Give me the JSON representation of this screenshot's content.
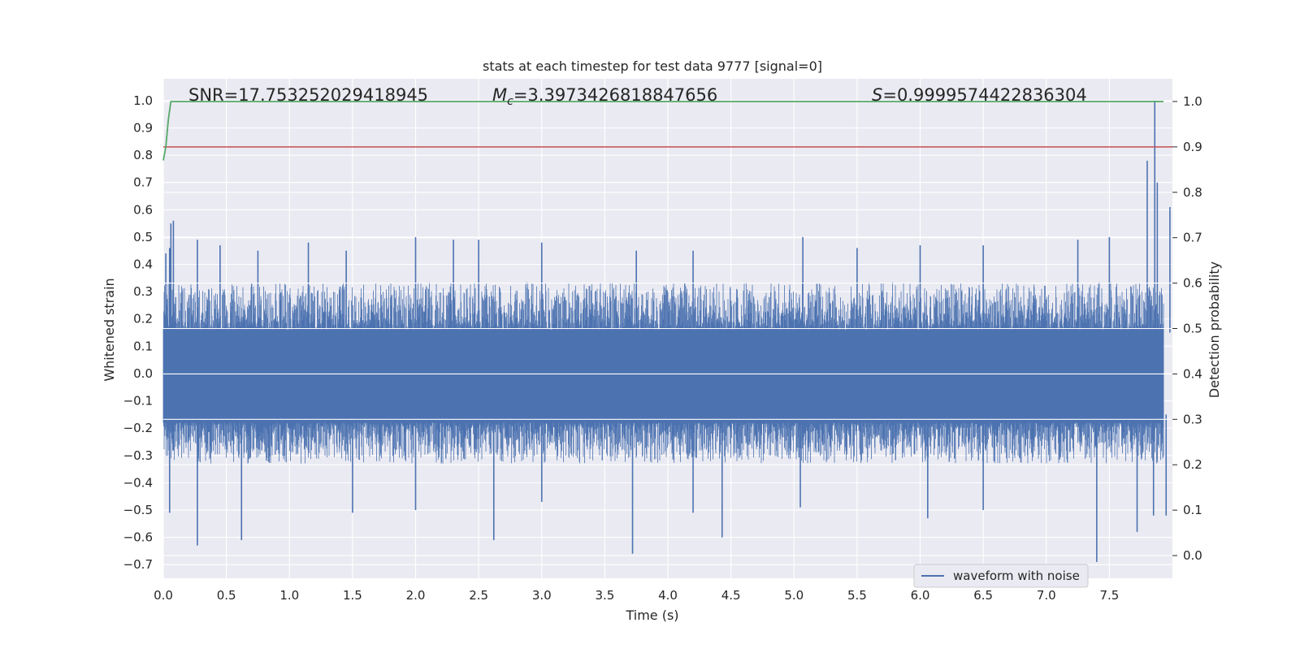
{
  "chart_data": {
    "type": "line",
    "title": "stats at each timestep for test data 9777 [signal=0]",
    "xlabel": "Time (s)",
    "ylabel": "Whitened strain",
    "y2label": "Detection probability",
    "xlim": [
      0.0,
      8.0
    ],
    "ylim": [
      -0.75,
      1.08
    ],
    "y2lim": [
      -0.05,
      1.05
    ],
    "x_ticks": [
      0.0,
      0.5,
      1.0,
      1.5,
      2.0,
      2.5,
      3.0,
      3.5,
      4.0,
      4.5,
      5.0,
      5.5,
      6.0,
      6.5,
      7.0,
      7.5
    ],
    "x_tick_labels": [
      "0.0",
      "0.5",
      "1.0",
      "1.5",
      "2.0",
      "2.5",
      "3.0",
      "3.5",
      "4.0",
      "4.5",
      "5.0",
      "5.5",
      "6.0",
      "6.5",
      "7.0",
      "7.5"
    ],
    "y_ticks": [
      -0.7,
      -0.6,
      -0.5,
      -0.4,
      -0.3,
      -0.2,
      -0.1,
      0.0,
      0.1,
      0.2,
      0.3,
      0.4,
      0.5,
      0.6,
      0.7,
      0.8,
      0.9,
      1.0
    ],
    "y_tick_labels": [
      "−0.7",
      "−0.6",
      "−0.5",
      "−0.4",
      "−0.3",
      "−0.2",
      "−0.1",
      "0.0",
      "0.1",
      "0.2",
      "0.3",
      "0.4",
      "0.5",
      "0.6",
      "0.7",
      "0.8",
      "0.9",
      "1.0"
    ],
    "y2_ticks": [
      0.0,
      0.1,
      0.2,
      0.3,
      0.4,
      0.5,
      0.6,
      0.7,
      0.8,
      0.9,
      1.0
    ],
    "y2_tick_labels": [
      "0.0",
      "0.1",
      "0.2",
      "0.3",
      "0.4",
      "0.5",
      "0.6",
      "0.7",
      "0.8",
      "0.9",
      "1.0"
    ],
    "annotations": {
      "snr": "SNR=17.753252029418945",
      "mc_sym": "M",
      "mc_sub": "c",
      "mc_val": "=3.3973426818847656",
      "s_sym": "S",
      "s_val": "=0.9999574422836304"
    },
    "legend": {
      "position": "lower-right",
      "entries": [
        "waveform with noise"
      ]
    },
    "grid": true,
    "colors": {
      "axes_bg": "#eaeaf2",
      "grid": "#ffffff",
      "waveform": "#4c72b0",
      "probability": "#55a868",
      "threshold": "#c44e52"
    },
    "series": [
      {
        "name": "waveform with noise",
        "axis": "left",
        "kind": "noise-band",
        "x_range": [
          0.0,
          7.93
        ],
        "dense_envelope": [
          -0.18,
          0.16
        ],
        "typical_envelope": [
          -0.3,
          0.3
        ],
        "peaks": [
          [
            0.02,
            0.44
          ],
          [
            0.05,
            0.46
          ],
          [
            0.06,
            0.55
          ],
          [
            0.08,
            0.56
          ],
          [
            0.27,
            0.49
          ],
          [
            0.45,
            0.47
          ],
          [
            0.75,
            0.45
          ],
          [
            1.15,
            0.48
          ],
          [
            1.45,
            0.45
          ],
          [
            2.0,
            0.5
          ],
          [
            2.3,
            0.49
          ],
          [
            2.5,
            0.49
          ],
          [
            3.0,
            0.48
          ],
          [
            3.75,
            0.45
          ],
          [
            4.2,
            0.45
          ],
          [
            5.07,
            0.5
          ],
          [
            5.5,
            0.46
          ],
          [
            6.0,
            0.47
          ],
          [
            6.5,
            0.47
          ],
          [
            7.25,
            0.49
          ],
          [
            7.5,
            0.5
          ],
          [
            7.8,
            0.78
          ],
          [
            7.86,
            1.0
          ],
          [
            7.88,
            0.7
          ],
          [
            7.98,
            0.61
          ]
        ],
        "troughs": [
          [
            0.05,
            -0.51
          ],
          [
            0.27,
            -0.63
          ],
          [
            0.62,
            -0.61
          ],
          [
            1.5,
            -0.51
          ],
          [
            2.0,
            -0.5
          ],
          [
            2.62,
            -0.61
          ],
          [
            3.0,
            -0.47
          ],
          [
            3.72,
            -0.66
          ],
          [
            4.2,
            -0.51
          ],
          [
            4.43,
            -0.6
          ],
          [
            5.05,
            -0.49
          ],
          [
            6.06,
            -0.53
          ],
          [
            6.5,
            -0.5
          ],
          [
            7.4,
            -0.69
          ],
          [
            7.72,
            -0.58
          ],
          [
            7.85,
            -0.52
          ],
          [
            7.95,
            -0.52
          ]
        ]
      },
      {
        "name": "detection probability",
        "axis": "right",
        "kind": "line",
        "x": [
          0.0,
          0.02,
          0.04,
          0.06,
          0.07,
          7.93
        ],
        "y": [
          0.87,
          0.9,
          0.96,
          1.0,
          1.0,
          1.0
        ]
      },
      {
        "name": "threshold",
        "axis": "right",
        "kind": "hline",
        "x": [
          0.0,
          8.0
        ],
        "y": [
          0.9,
          0.9
        ]
      }
    ]
  }
}
